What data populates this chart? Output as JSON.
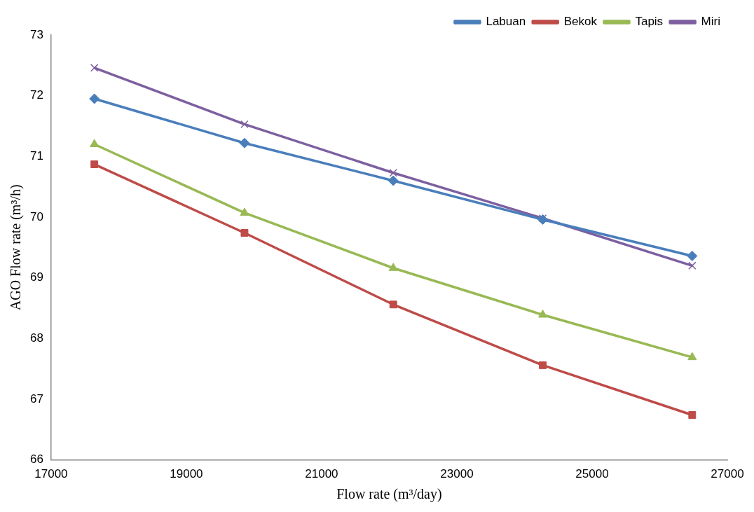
{
  "chart_data": {
    "type": "line",
    "xlabel": "Flow rate (m³/day)",
    "ylabel": "AGO Flow rate (m³/h)",
    "x": [
      17640,
      19860,
      22060,
      24270,
      26480
    ],
    "series": [
      {
        "name": "Labuan",
        "color": "#4a7ebb",
        "marker": "diamond",
        "values": [
          71.95,
          71.22,
          70.6,
          69.96,
          69.36
        ]
      },
      {
        "name": "Bekok",
        "color": "#be4b48",
        "marker": "square",
        "values": [
          70.87,
          69.74,
          68.56,
          67.56,
          66.74
        ]
      },
      {
        "name": "Tapis",
        "color": "#98b954",
        "marker": "triangle",
        "values": [
          71.2,
          70.07,
          69.16,
          68.39,
          67.69
        ]
      },
      {
        "name": "Miri",
        "color": "#7d5fa0",
        "marker": "cross",
        "values": [
          72.46,
          71.53,
          70.73,
          69.98,
          69.2
        ]
      }
    ],
    "xlim": [
      17000,
      27000
    ],
    "xticks": [
      17000,
      19000,
      21000,
      23000,
      25000,
      27000
    ],
    "ylim": [
      66,
      73
    ],
    "yticks": [
      66,
      67,
      68,
      69,
      70,
      71,
      72,
      73
    ],
    "grid": false,
    "legend": "top"
  }
}
